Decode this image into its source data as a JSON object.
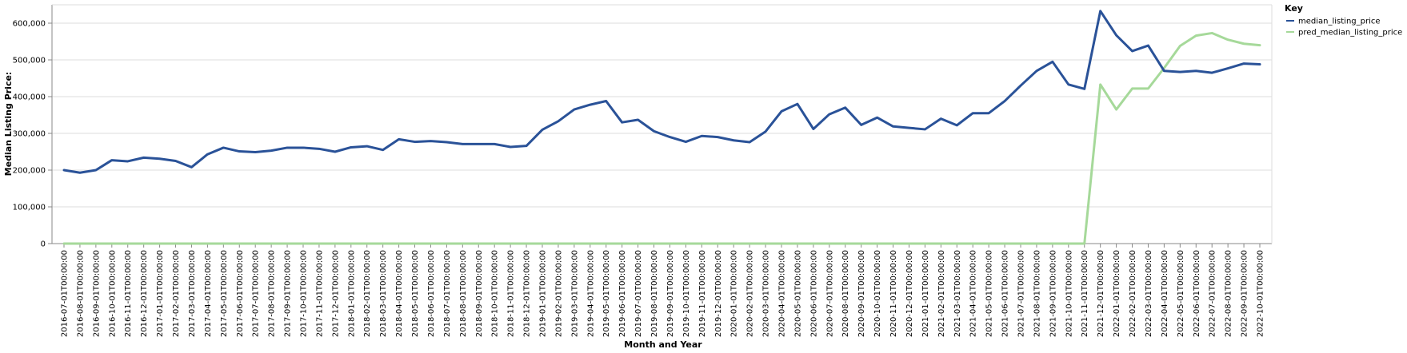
{
  "chart_data": {
    "type": "line",
    "xlabel": "Month and Year",
    "ylabel": "Median Listing Price:",
    "ylim": [
      0,
      650000
    ],
    "yticks": [
      0,
      100000,
      200000,
      300000,
      400000,
      500000,
      600000
    ],
    "ytick_labels": [
      "0",
      "100,000",
      "200,000",
      "300,000",
      "400,000",
      "500,000",
      "600,000"
    ],
    "grid": true,
    "legend": {
      "title": "Key",
      "position": "top-right"
    },
    "colors": {
      "median_listing_price": "#2a5298",
      "pred_median_listing_price": "#a6d99a"
    },
    "x": [
      "2016-07-01T00:00:00",
      "2016-08-01T00:00:00",
      "2016-09-01T00:00:00",
      "2016-10-01T00:00:00",
      "2016-11-01T00:00:00",
      "2016-12-01T00:00:00",
      "2017-01-01T00:00:00",
      "2017-02-01T00:00:00",
      "2017-03-01T00:00:00",
      "2017-04-01T00:00:00",
      "2017-05-01T00:00:00",
      "2017-06-01T00:00:00",
      "2017-07-01T00:00:00",
      "2017-08-01T00:00:00",
      "2017-09-01T00:00:00",
      "2017-10-01T00:00:00",
      "2017-11-01T00:00:00",
      "2017-12-01T00:00:00",
      "2018-01-01T00:00:00",
      "2018-02-01T00:00:00",
      "2018-03-01T00:00:00",
      "2018-04-01T00:00:00",
      "2018-05-01T00:00:00",
      "2018-06-01T00:00:00",
      "2018-07-01T00:00:00",
      "2018-08-01T00:00:00",
      "2018-09-01T00:00:00",
      "2018-10-01T00:00:00",
      "2018-11-01T00:00:00",
      "2018-12-01T00:00:00",
      "2019-01-01T00:00:00",
      "2019-02-01T00:00:00",
      "2019-03-01T00:00:00",
      "2019-04-01T00:00:00",
      "2019-05-01T00:00:00",
      "2019-06-01T00:00:00",
      "2019-07-01T00:00:00",
      "2019-08-01T00:00:00",
      "2019-09-01T00:00:00",
      "2019-10-01T00:00:00",
      "2019-11-01T00:00:00",
      "2019-12-01T00:00:00",
      "2020-01-01T00:00:00",
      "2020-02-01T00:00:00",
      "2020-03-01T00:00:00",
      "2020-04-01T00:00:00",
      "2020-05-01T00:00:00",
      "2020-06-01T00:00:00",
      "2020-07-01T00:00:00",
      "2020-08-01T00:00:00",
      "2020-09-01T00:00:00",
      "2020-10-01T00:00:00",
      "2020-11-01T00:00:00",
      "2020-12-01T00:00:00",
      "2021-01-01T00:00:00",
      "2021-02-01T00:00:00",
      "2021-03-01T00:00:00",
      "2021-04-01T00:00:00",
      "2021-05-01T00:00:00",
      "2021-06-01T00:00:00",
      "2021-07-01T00:00:00",
      "2021-08-01T00:00:00",
      "2021-09-01T00:00:00",
      "2021-10-01T00:00:00",
      "2021-11-01T00:00:00",
      "2021-12-01T00:00:00",
      "2022-01-01T00:00:00",
      "2022-02-01T00:00:00",
      "2022-03-01T00:00:00",
      "2022-04-01T00:00:00",
      "2022-05-01T00:00:00",
      "2022-06-01T00:00:00",
      "2022-07-01T00:00:00",
      "2022-08-01T00:00:00",
      "2022-09-01T00:00:00",
      "2022-10-01T00:00:00"
    ],
    "series": [
      {
        "name": "median_listing_price",
        "values": [
          200000,
          193000,
          200000,
          227000,
          224000,
          234000,
          231000,
          225000,
          208000,
          243000,
          261000,
          251000,
          249000,
          253000,
          261000,
          261000,
          258000,
          250000,
          262000,
          265000,
          255000,
          284000,
          277000,
          279000,
          276000,
          271000,
          271000,
          271000,
          263000,
          266000,
          310000,
          333000,
          365000,
          378000,
          388000,
          330000,
          337000,
          306000,
          290000,
          277000,
          293000,
          290000,
          281000,
          276000,
          305000,
          360000,
          380000,
          312000,
          352000,
          370000,
          323000,
          343000,
          319000,
          315000,
          311000,
          340000,
          322000,
          355000,
          355000,
          388000,
          430000,
          470000,
          495000,
          433000,
          421000,
          633000,
          567000,
          524000,
          539000,
          470000,
          467000,
          470000,
          465000,
          477000,
          490000,
          488000
        ]
      },
      {
        "name": "pred_median_listing_price",
        "values": [
          0,
          0,
          0,
          0,
          0,
          0,
          0,
          0,
          0,
          0,
          0,
          0,
          0,
          0,
          0,
          0,
          0,
          0,
          0,
          0,
          0,
          0,
          0,
          0,
          0,
          0,
          0,
          0,
          0,
          0,
          0,
          0,
          0,
          0,
          0,
          0,
          0,
          0,
          0,
          0,
          0,
          0,
          0,
          0,
          0,
          0,
          0,
          0,
          0,
          0,
          0,
          0,
          0,
          0,
          0,
          0,
          0,
          0,
          0,
          0,
          0,
          0,
          0,
          0,
          0,
          433000,
          365000,
          422000,
          422000,
          478000,
          538000,
          566000,
          573000,
          555000,
          544000,
          540000
        ]
      }
    ]
  }
}
